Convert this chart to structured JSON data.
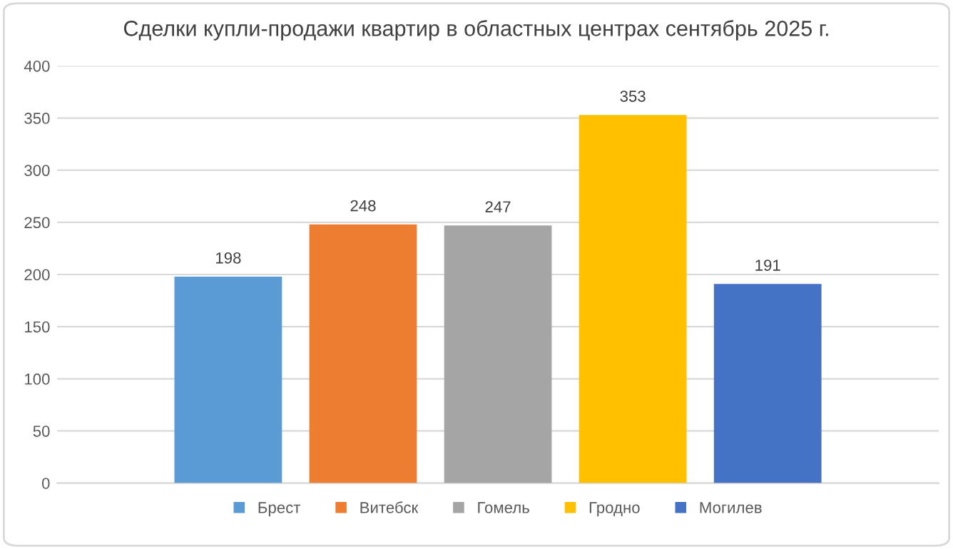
{
  "chart_data": {
    "type": "bar",
    "title": "Сделки купли-продажи квартир в областных центрах сентябрь 2025 г.",
    "categories": [
      null
    ],
    "series": [
      {
        "name": "Брест",
        "color": "#5b9bd5",
        "values": [
          198
        ]
      },
      {
        "name": "Витебск",
        "color": "#ed7d31",
        "values": [
          248
        ]
      },
      {
        "name": "Гомель",
        "color": "#a5a5a5",
        "values": [
          247
        ]
      },
      {
        "name": "Гродно",
        "color": "#ffc000",
        "values": [
          353
        ]
      },
      {
        "name": "Могилев",
        "color": "#4472c4",
        "values": [
          191
        ]
      }
    ],
    "ylim": [
      0,
      400
    ],
    "yticks": [
      0,
      50,
      100,
      150,
      200,
      250,
      300,
      350,
      400
    ],
    "grid": "y",
    "legend": "bottom",
    "data_labels": true,
    "tick_labels": "y"
  }
}
